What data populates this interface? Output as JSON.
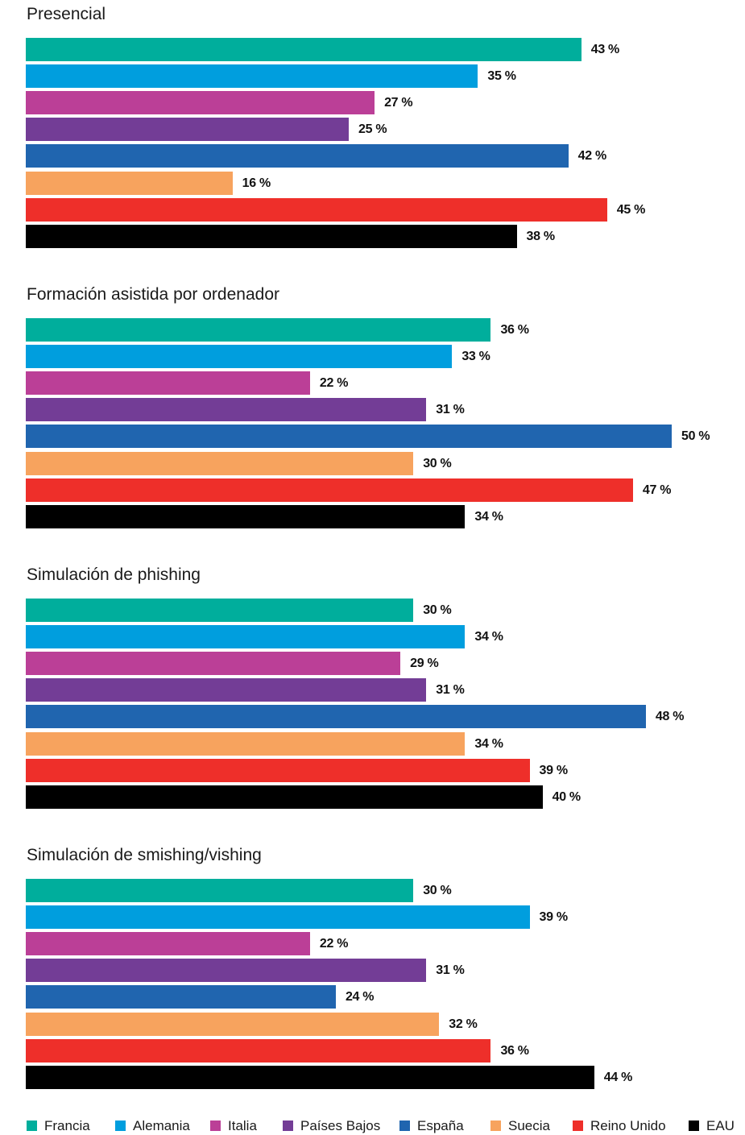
{
  "chart_data": {
    "type": "bar",
    "orientation": "horizontal",
    "value_suffix": "%",
    "series_names": [
      "Francia",
      "Alemania",
      "Italia",
      "Países Bajos",
      "España",
      "Suecia",
      "Reino Unido",
      "EAU"
    ],
    "colors": [
      "#00ae9c",
      "#009ede",
      "#bb3f97",
      "#733d96",
      "#2065af",
      "#f7a35e",
      "#ee2f2a",
      "#000000"
    ],
    "panels": [
      {
        "title": "Presencial",
        "values": [
          43,
          35,
          27,
          25,
          42,
          16,
          45,
          38
        ],
        "labels": [
          "43 %",
          "35 %",
          "27 %",
          "25 %",
          "42 %",
          "16 %",
          "45 %",
          "38 %"
        ]
      },
      {
        "title": "Formación asistida por ordenador",
        "values": [
          36,
          33,
          22,
          31,
          50,
          30,
          47,
          34
        ],
        "labels": [
          "36 %",
          "33 %",
          "22 %",
          "31 %",
          "50 %",
          "30 %",
          "47 %",
          "34 %"
        ]
      },
      {
        "title": "Simulación de phishing",
        "values": [
          30,
          34,
          29,
          31,
          48,
          34,
          39,
          40
        ],
        "labels": [
          "30 %",
          "34 %",
          "29 %",
          "31 %",
          "48 %",
          "34 %",
          "39 %",
          "40 %"
        ]
      },
      {
        "title": "Simulación de smishing/vishing",
        "values": [
          30,
          39,
          22,
          31,
          24,
          32,
          36,
          44
        ],
        "labels": [
          "30 %",
          "39 %",
          "22 %",
          "31 %",
          "24 %",
          "32 %",
          "36 %",
          "44 %"
        ]
      }
    ],
    "legend_position": "bottom",
    "grid": false
  }
}
